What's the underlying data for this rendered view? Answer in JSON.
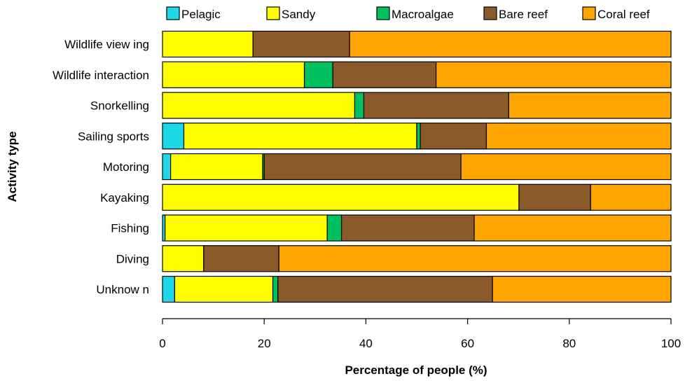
{
  "chart_data": {
    "type": "bar",
    "orientation": "horizontal",
    "stacked": true,
    "xlabel": "Percentage of people (%)",
    "ylabel": "Activity type",
    "xlim": [
      0,
      100
    ],
    "xticks": [
      0,
      20,
      40,
      60,
      80,
      100
    ],
    "grid": false,
    "legend_position": "top",
    "categories": [
      "Wildlife viewing",
      "Wildlife interaction",
      "Snorkelling",
      "Sailing sports",
      "Motoring",
      "Kayaking",
      "Fishing",
      "Diving",
      "Unknown"
    ],
    "category_labels": [
      "Wildlife view ing",
      "Wildlife interaction",
      "Snorkelling",
      "Sailing sports",
      "Motoring",
      "Kayaking",
      "Fishing",
      "Diving",
      "Unknow n"
    ],
    "series": [
      {
        "name": "Pelagic",
        "color": "#1ED8E8",
        "values": [
          0,
          0,
          0,
          4.2,
          1.6,
          0,
          0.5,
          0,
          2.4
        ]
      },
      {
        "name": "Sandy",
        "color": "#FFFF00",
        "values": [
          17.8,
          27.9,
          37.8,
          45.8,
          18.1,
          70.1,
          31.9,
          8.1,
          19.3
        ]
      },
      {
        "name": "Macroalgae",
        "color": "#00C060",
        "values": [
          0,
          5.6,
          1.8,
          0.7,
          0.3,
          0,
          2.8,
          0,
          1.0
        ]
      },
      {
        "name": "Bare reef",
        "color": "#8B5A2B",
        "values": [
          19.0,
          20.3,
          28.5,
          13.0,
          38.7,
          14.1,
          26.1,
          14.8,
          42.2
        ]
      },
      {
        "name": "Coral reef",
        "color": "#FFA500",
        "values": [
          63.2,
          46.2,
          31.9,
          36.3,
          41.3,
          15.8,
          38.7,
          77.1,
          35.1
        ]
      }
    ]
  }
}
